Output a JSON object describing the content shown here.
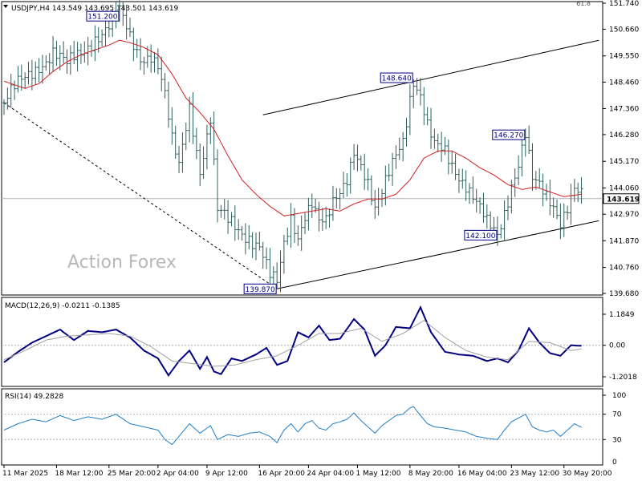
{
  "colors": {
    "price_bars": "#2f5e5e",
    "ma_line": "#d02020",
    "macd_line": "#000080",
    "macd_signal": "#a0a0a0",
    "rsi_line": "#1f7fc8",
    "trendline": "#000000",
    "refline": "#b0b0b0",
    "annotation_border": "#000080"
  },
  "chart_data": [
    {
      "type": "candlestick",
      "panel": "price",
      "title": "USDJPY,H4  143.549 143.695 143.501 143.619",
      "watermark": "Action Forex",
      "ylim": [
        139.68,
        151.74
      ],
      "y_ticks": [
        151.74,
        150.66,
        149.55,
        148.46,
        147.36,
        146.28,
        145.17,
        144.06,
        142.97,
        141.87,
        140.76,
        139.68
      ],
      "y_tick_labels": [
        "151.740",
        "150.660",
        "149.550",
        "148.460",
        "147.360",
        "146.280",
        "145.170",
        "144.060",
        "142.970",
        "141.870",
        "140.760",
        "139.680"
      ],
      "top_right_fib_label": "61.8",
      "current_price": 143.619,
      "current_price_label": "143.619",
      "bar_count": 170,
      "x_labels": [
        "11 Mar 2025",
        "18 Mar 12:00",
        "25 Mar 20:00",
        "2 Apr 04:00",
        "9 Apr 12:00",
        "16 Apr 20:00",
        "24 Apr 04:00",
        "1 May 12:00",
        "8 May 20:00",
        "16 May 04:00",
        "23 May 12:00",
        "30 May 20:00"
      ],
      "x_label_bar_index": [
        0,
        15,
        30,
        44,
        58,
        73,
        87,
        101,
        116,
        130,
        145,
        160
      ],
      "close_path": [
        [
          0,
          147.6
        ],
        [
          6,
          148.5
        ],
        [
          10,
          149.3
        ],
        [
          14,
          149.8
        ],
        [
          18,
          149.0
        ],
        [
          22,
          149.6
        ],
        [
          26,
          150.5
        ],
        [
          30,
          150.8
        ],
        [
          33,
          151.2
        ],
        [
          36,
          150.2
        ],
        [
          39,
          149.6
        ],
        [
          42,
          149.8
        ],
        [
          44,
          149.2
        ],
        [
          46,
          147.8
        ],
        [
          48,
          145.8
        ],
        [
          50,
          144.8
        ],
        [
          53,
          147.5
        ],
        [
          56,
          145.0
        ],
        [
          59,
          147.0
        ],
        [
          61,
          143.0
        ],
        [
          64,
          142.5
        ],
        [
          67,
          142.3
        ],
        [
          70,
          142.2
        ],
        [
          73,
          141.8
        ],
        [
          76,
          140.3
        ],
        [
          78,
          139.87
        ],
        [
          80,
          141.5
        ],
        [
          82,
          142.8
        ],
        [
          84,
          142.2
        ],
        [
          86,
          143.2
        ],
        [
          88,
          143.6
        ],
        [
          90,
          142.6
        ],
        [
          92,
          142.4
        ],
        [
          94,
          143.2
        ],
        [
          96,
          143.8
        ],
        [
          98,
          144.6
        ],
        [
          100,
          145.9
        ],
        [
          102,
          145.2
        ],
        [
          104,
          144.2
        ],
        [
          106,
          142.9
        ],
        [
          108,
          143.6
        ],
        [
          110,
          144.6
        ],
        [
          112,
          145.6
        ],
        [
          114,
          146.3
        ],
        [
          116,
          148.0
        ],
        [
          117,
          148.64
        ],
        [
          119,
          147.8
        ],
        [
          121,
          146.4
        ],
        [
          123,
          145.6
        ],
        [
          126,
          145.6
        ],
        [
          129,
          145.0
        ],
        [
          132,
          144.3
        ],
        [
          135,
          143.3
        ],
        [
          138,
          142.4
        ],
        [
          141,
          142.1
        ],
        [
          143,
          143.2
        ],
        [
          145,
          144.4
        ],
        [
          147,
          145.2
        ],
        [
          149,
          146.27
        ],
        [
          151,
          144.2
        ],
        [
          153,
          143.9
        ],
        [
          155,
          143.6
        ],
        [
          157,
          143.4
        ],
        [
          159,
          142.9
        ],
        [
          161,
          143.5
        ],
        [
          163,
          144.1
        ],
        [
          165,
          143.62
        ]
      ],
      "ma_path": [
        [
          0,
          148.5
        ],
        [
          6,
          148.2
        ],
        [
          10,
          148.4
        ],
        [
          14,
          148.9
        ],
        [
          18,
          149.3
        ],
        [
          22,
          149.6
        ],
        [
          26,
          149.8
        ],
        [
          30,
          150.0
        ],
        [
          33,
          150.2
        ],
        [
          36,
          150.1
        ],
        [
          40,
          149.9
        ],
        [
          44,
          149.6
        ],
        [
          48,
          148.8
        ],
        [
          52,
          147.8
        ],
        [
          56,
          147.2
        ],
        [
          60,
          146.5
        ],
        [
          64,
          145.4
        ],
        [
          68,
          144.4
        ],
        [
          72,
          143.8
        ],
        [
          76,
          143.3
        ],
        [
          80,
          142.9
        ],
        [
          84,
          143.0
        ],
        [
          88,
          143.1
        ],
        [
          92,
          143.2
        ],
        [
          96,
          143.1
        ],
        [
          100,
          143.4
        ],
        [
          104,
          143.6
        ],
        [
          108,
          143.6
        ],
        [
          112,
          143.8
        ],
        [
          116,
          144.4
        ],
        [
          120,
          145.3
        ],
        [
          124,
          145.6
        ],
        [
          128,
          145.6
        ],
        [
          132,
          145.3
        ],
        [
          136,
          144.9
        ],
        [
          140,
          144.6
        ],
        [
          144,
          144.2
        ],
        [
          148,
          144.0
        ],
        [
          152,
          144.1
        ],
        [
          156,
          143.9
        ],
        [
          160,
          143.7
        ],
        [
          165,
          143.8
        ]
      ],
      "annotations": [
        {
          "label": "151.200",
          "bar": 33,
          "price": 151.2,
          "side": "left"
        },
        {
          "label": "148.640",
          "bar": 117,
          "price": 148.64,
          "side": "left"
        },
        {
          "label": "146.270",
          "bar": 149,
          "price": 146.27,
          "side": "left"
        },
        {
          "label": "142.100",
          "bar": 141,
          "price": 142.1,
          "side": "left"
        },
        {
          "label": "139.870",
          "bar": 78,
          "price": 139.87,
          "side": "left"
        }
      ],
      "trendlines": [
        {
          "style": "dashed",
          "from": [
            0,
            147.6
          ],
          "to": [
            78,
            139.87
          ]
        },
        {
          "style": "solid",
          "from": [
            74,
            147.1
          ],
          "to": [
            170,
            150.2
          ]
        },
        {
          "style": "solid",
          "from": [
            78,
            139.87
          ],
          "to": [
            170,
            142.7
          ]
        }
      ]
    },
    {
      "type": "line",
      "panel": "macd",
      "title": "MACD(12,26,9) -0.0211 -0.1385",
      "ylim": [
        -1.2018,
        1.1849
      ],
      "y_ticks": [
        1.1849,
        0.0,
        -1.2018
      ],
      "y_tick_labels": [
        "1.1849",
        "0.00",
        "-1.2018"
      ],
      "zero_line": 0,
      "series": [
        {
          "role": "macd",
          "points": [
            [
              0,
              -0.65
            ],
            [
              4,
              -0.25
            ],
            [
              8,
              0.1
            ],
            [
              12,
              0.35
            ],
            [
              16,
              0.6
            ],
            [
              20,
              0.2
            ],
            [
              24,
              0.55
            ],
            [
              28,
              0.5
            ],
            [
              32,
              0.6
            ],
            [
              36,
              0.3
            ],
            [
              40,
              -0.2
            ],
            [
              44,
              -0.5
            ],
            [
              47,
              -1.15
            ],
            [
              50,
              -0.6
            ],
            [
              53,
              -0.2
            ],
            [
              56,
              -0.9
            ],
            [
              58,
              -0.45
            ],
            [
              60,
              -1.0
            ],
            [
              62,
              -1.1
            ],
            [
              65,
              -0.5
            ],
            [
              68,
              -0.6
            ],
            [
              72,
              -0.35
            ],
            [
              75,
              -0.1
            ],
            [
              78,
              -0.75
            ],
            [
              81,
              -0.6
            ],
            [
              84,
              0.5
            ],
            [
              87,
              0.3
            ],
            [
              90,
              0.75
            ],
            [
              93,
              0.2
            ],
            [
              96,
              0.25
            ],
            [
              100,
              1.0
            ],
            [
              103,
              0.6
            ],
            [
              106,
              -0.4
            ],
            [
              109,
              0.0
            ],
            [
              112,
              0.7
            ],
            [
              116,
              0.65
            ],
            [
              119,
              1.45
            ],
            [
              122,
              0.5
            ],
            [
              126,
              -0.25
            ],
            [
              130,
              -0.35
            ],
            [
              134,
              -0.4
            ],
            [
              138,
              -0.6
            ],
            [
              141,
              -0.5
            ],
            [
              144,
              -0.65
            ],
            [
              147,
              -0.2
            ],
            [
              150,
              0.65
            ],
            [
              153,
              0.1
            ],
            [
              156,
              -0.3
            ],
            [
              159,
              -0.4
            ],
            [
              162,
              0.0
            ],
            [
              165,
              -0.02
            ]
          ]
        },
        {
          "role": "signal",
          "points": [
            [
              0,
              -0.55
            ],
            [
              6,
              -0.2
            ],
            [
              12,
              0.2
            ],
            [
              18,
              0.35
            ],
            [
              24,
              0.4
            ],
            [
              30,
              0.45
            ],
            [
              36,
              0.35
            ],
            [
              42,
              -0.05
            ],
            [
              48,
              -0.6
            ],
            [
              54,
              -0.7
            ],
            [
              60,
              -0.8
            ],
            [
              66,
              -0.75
            ],
            [
              72,
              -0.55
            ],
            [
              78,
              -0.4
            ],
            [
              84,
              0.0
            ],
            [
              90,
              0.45
            ],
            [
              96,
              0.45
            ],
            [
              102,
              0.65
            ],
            [
              108,
              0.15
            ],
            [
              114,
              0.45
            ],
            [
              120,
              0.95
            ],
            [
              126,
              0.3
            ],
            [
              132,
              -0.2
            ],
            [
              138,
              -0.45
            ],
            [
              144,
              -0.55
            ],
            [
              150,
              0.15
            ],
            [
              156,
              0.1
            ],
            [
              162,
              -0.2
            ],
            [
              165,
              -0.14
            ]
          ]
        }
      ]
    },
    {
      "type": "line",
      "panel": "rsi",
      "title": "RSI(14) 49.2828",
      "ylim": [
        0,
        100
      ],
      "y_ticks": [
        100,
        70,
        30,
        0
      ],
      "y_tick_labels": [
        "100",
        "70",
        "30",
        "0"
      ],
      "ref_lines": [
        70,
        30
      ],
      "series": [
        {
          "role": "rsi",
          "points": [
            [
              0,
              45
            ],
            [
              4,
              55
            ],
            [
              8,
              62
            ],
            [
              12,
              58
            ],
            [
              16,
              68
            ],
            [
              20,
              60
            ],
            [
              24,
              66
            ],
            [
              28,
              62
            ],
            [
              32,
              70
            ],
            [
              36,
              55
            ],
            [
              40,
              50
            ],
            [
              44,
              45
            ],
            [
              46,
              30
            ],
            [
              48,
              22
            ],
            [
              50,
              35
            ],
            [
              53,
              55
            ],
            [
              56,
              40
            ],
            [
              59,
              52
            ],
            [
              61,
              30
            ],
            [
              64,
              38
            ],
            [
              67,
              35
            ],
            [
              70,
              40
            ],
            [
              73,
              42
            ],
            [
              76,
              35
            ],
            [
              78,
              25
            ],
            [
              80,
              45
            ],
            [
              82,
              55
            ],
            [
              84,
              42
            ],
            [
              86,
              55
            ],
            [
              88,
              60
            ],
            [
              90,
              48
            ],
            [
              92,
              45
            ],
            [
              94,
              55
            ],
            [
              96,
              58
            ],
            [
              98,
              62
            ],
            [
              100,
              72
            ],
            [
              102,
              60
            ],
            [
              104,
              50
            ],
            [
              106,
              40
            ],
            [
              108,
              52
            ],
            [
              110,
              60
            ],
            [
              112,
              68
            ],
            [
              114,
              70
            ],
            [
              116,
              80
            ],
            [
              117,
              82
            ],
            [
              119,
              68
            ],
            [
              121,
              55
            ],
            [
              123,
              50
            ],
            [
              126,
              48
            ],
            [
              129,
              45
            ],
            [
              132,
              42
            ],
            [
              135,
              35
            ],
            [
              138,
              32
            ],
            [
              141,
              30
            ],
            [
              143,
              45
            ],
            [
              145,
              58
            ],
            [
              147,
              64
            ],
            [
              149,
              70
            ],
            [
              151,
              50
            ],
            [
              153,
              45
            ],
            [
              155,
              42
            ],
            [
              157,
              45
            ],
            [
              159,
              35
            ],
            [
              161,
              45
            ],
            [
              163,
              55
            ],
            [
              165,
              49.28
            ]
          ]
        }
      ]
    }
  ]
}
